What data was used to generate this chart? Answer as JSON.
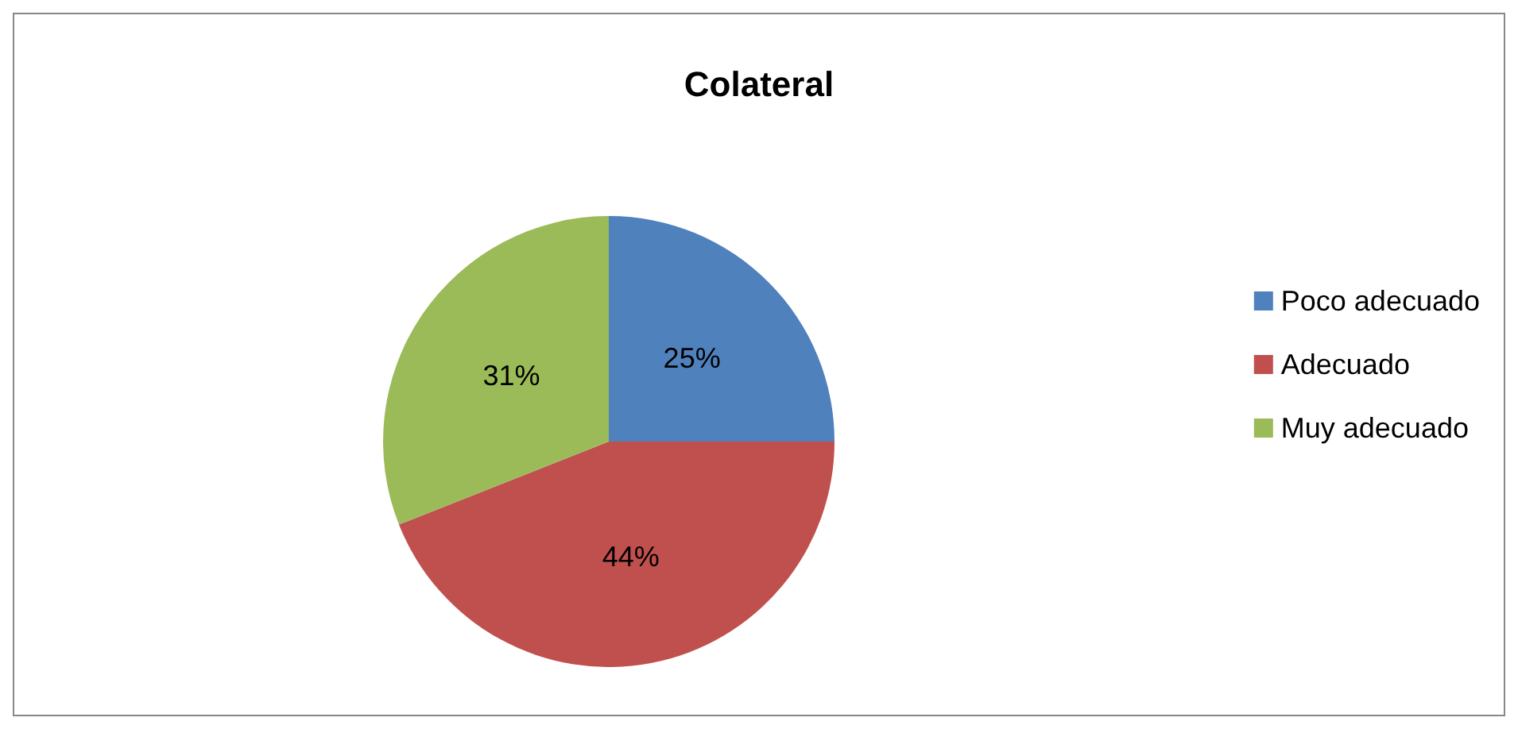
{
  "chart_data": {
    "type": "pie",
    "title": "Colateral",
    "categories": [
      "Poco adecuado",
      "Adecuado",
      "Muy adecuado"
    ],
    "values": [
      25,
      44,
      31
    ],
    "colors": [
      "#4f81bd",
      "#c0504d",
      "#9bbb59"
    ],
    "value_labels": [
      "25%",
      "44%",
      "31%"
    ],
    "legend": "right"
  }
}
